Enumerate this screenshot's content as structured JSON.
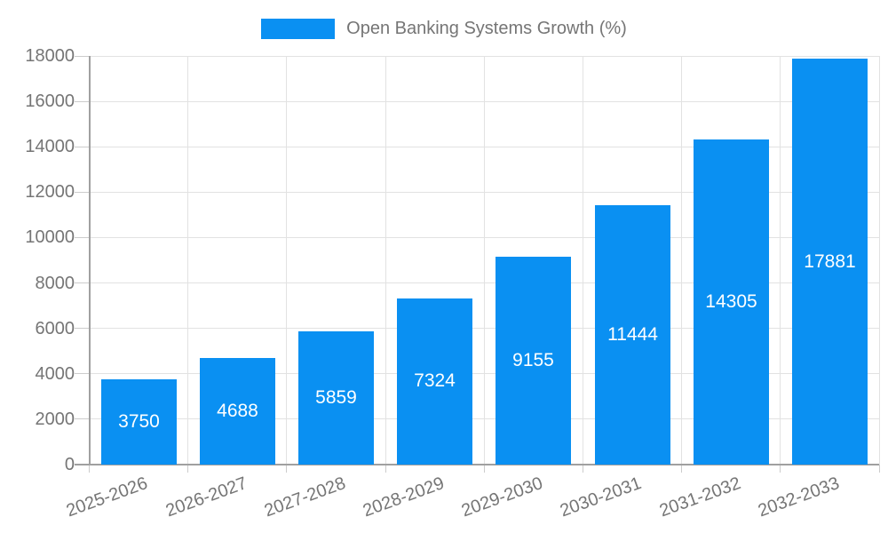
{
  "chart_data": {
    "type": "bar",
    "title": "Open Banking Systems Growth (%)",
    "legend": {
      "label": "Open Banking Systems Growth (%)",
      "position": "top-center"
    },
    "categories": [
      "2025-2026",
      "2026-2027",
      "2027-2028",
      "2028-2029",
      "2029-2030",
      "2030-2031",
      "2031-2032",
      "2032-2033"
    ],
    "values": [
      3750,
      4688,
      5859,
      7324,
      9155,
      11444,
      14305,
      17881
    ],
    "xlabel": "",
    "ylabel": "",
    "ylim": [
      0,
      18000
    ],
    "yticks": [
      0,
      2000,
      4000,
      6000,
      8000,
      10000,
      12000,
      14000,
      16000,
      18000
    ],
    "grid": "both",
    "x_label_rotation_deg": -20,
    "colors": {
      "bar": "#0a90f2",
      "bar_value_text": "#ffffff",
      "axis_text": "#757575",
      "axis_line": "#a0a0a0",
      "gridline": "#e2e2e2",
      "tick": "#cccccc",
      "background": "#ffffff"
    }
  }
}
